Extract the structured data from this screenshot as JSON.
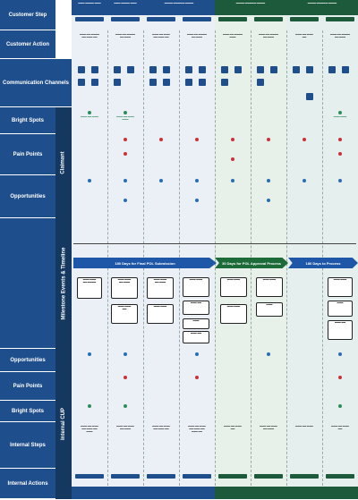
{
  "lanes": {
    "customer_step": "Customer Step",
    "customer_action": "Customer Action",
    "communication_channels": "Communication Channels",
    "bright_spots": "Bright Spots",
    "pain_points": "Pain Points",
    "opportunities": "Opportunities",
    "milestone_events": "Milestone Events & Timeline",
    "int_opportunities": "Opportunities",
    "int_pain_points": "Pain Points",
    "int_bright_spots": "Bright Spots",
    "internal_steps": "Internal Steps",
    "internal_actions": "Internal Actions"
  },
  "side_labels": {
    "claimant": "Claimant",
    "internal": "Internal CUP"
  },
  "phases": [
    {
      "label": "180 Days for Final POL Submission"
    },
    {
      "label": "30 Days for POL Approval Process"
    },
    {
      "label": "180 Days to Process"
    }
  ],
  "colors": {
    "lane_blue": "#1f4e8c",
    "header_blue": "#1f4e8c",
    "header_green": "#1d5a3c",
    "phase_blue": "#1f57a8",
    "phase_green": "#1e6b3a",
    "bright_green": "#2e8b57",
    "pain_red": "#c8323a",
    "opportunity_blue": "#2b6cb0"
  },
  "icons": {
    "people": "people-icon",
    "mail": "mail-icon",
    "phone": "phone-icon",
    "web": "web-icon"
  }
}
